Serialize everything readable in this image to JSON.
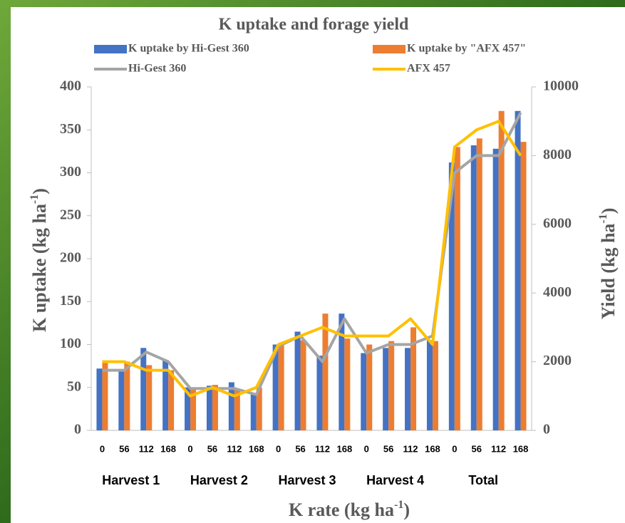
{
  "chart_data": {
    "type": "bar_line",
    "title": "K uptake and forage yield",
    "x_label": {
      "text": "K rate (kg ha",
      "superscript": "-1",
      "suffix": ")"
    },
    "y_label": {
      "text": "K uptake (kg ha",
      "superscript": "-1",
      "suffix": ")"
    },
    "y2_label": {
      "text": "Yield (kg ha",
      "superscript": "-1",
      "suffix": ")"
    },
    "categories": [
      "0",
      "56",
      "112",
      "168",
      "0",
      "56",
      "112",
      "168",
      "0",
      "56",
      "112",
      "168",
      "0",
      "56",
      "112",
      "168",
      "0",
      "56",
      "112",
      "168"
    ],
    "groups": [
      "Harvest 1",
      "Harvest 2",
      "Harvest 3",
      "Harvest 4",
      "Total"
    ],
    "ylim": [
      0,
      400
    ],
    "yticks": [
      0,
      50,
      100,
      150,
      200,
      250,
      300,
      350,
      400
    ],
    "y2lim": [
      0,
      10000
    ],
    "y2ticks": [
      0,
      2000,
      4000,
      6000,
      8000,
      10000
    ],
    "series": [
      {
        "name": "K uptake by Hi-Gest 360",
        "kind": "bar",
        "color": "#4472c4",
        "values": [
          72,
          71,
          96,
          82,
          50,
          52,
          56,
          43,
          100,
          115,
          87,
          136,
          90,
          96,
          96,
          105,
          312,
          332,
          328,
          372
        ]
      },
      {
        "name": "K uptake by \"AFX 457\"",
        "kind": "bar",
        "color": "#ed7d31",
        "values": [
          79,
          80,
          76,
          70,
          48,
          53,
          48,
          50,
          100,
          105,
          136,
          107,
          100,
          104,
          120,
          104,
          330,
          340,
          372,
          336
        ]
      },
      {
        "name": "Hi-Gest 360",
        "kind": "line",
        "axis": "y2",
        "color": "#a5a5a5",
        "values": [
          1750,
          1750,
          2280,
          2000,
          1220,
          1220,
          1220,
          1040,
          2450,
          2750,
          2000,
          3250,
          2250,
          2500,
          2500,
          2750,
          7500,
          8000,
          8000,
          9250
        ]
      },
      {
        "name": "AFX 457",
        "kind": "line",
        "axis": "y2",
        "color": "#ffc000",
        "values": [
          2000,
          2000,
          1750,
          1750,
          1000,
          1250,
          1000,
          1250,
          2500,
          2750,
          3000,
          2750,
          2750,
          2750,
          3250,
          2500,
          8250,
          8750,
          9000,
          8000
        ]
      }
    ]
  }
}
